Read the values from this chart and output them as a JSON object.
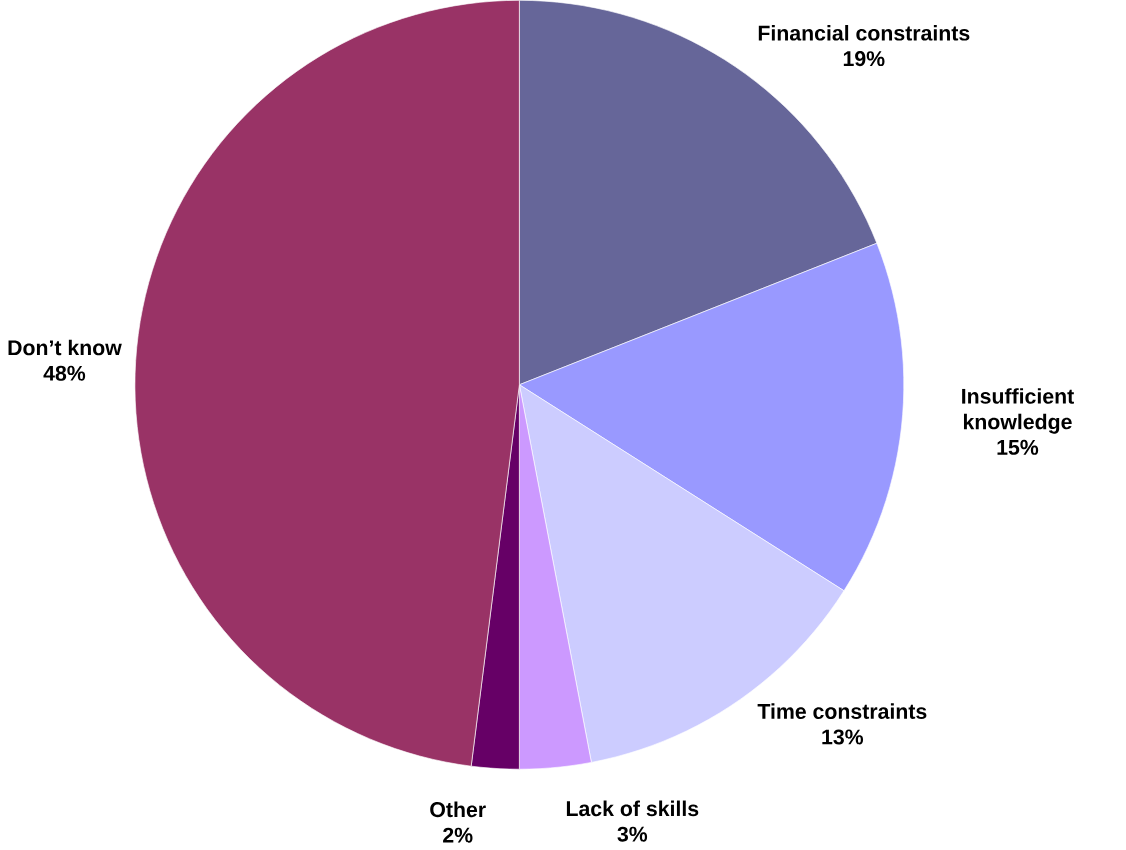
{
  "chart_data": {
    "type": "pie",
    "categories": [
      "Financial constraints",
      "Insufficient knowledge",
      "Time constraints",
      "Lack of skills",
      "Other",
      "Don’t know"
    ],
    "values": [
      19,
      15,
      13,
      3,
      2,
      48
    ],
    "colors": [
      "#666699",
      "#9999ff",
      "#ccccff",
      "#cc99ff",
      "#660066",
      "#993366"
    ],
    "value_labels": [
      "19%",
      "15%",
      "13%",
      "3%",
      "2%",
      "48%"
    ]
  }
}
